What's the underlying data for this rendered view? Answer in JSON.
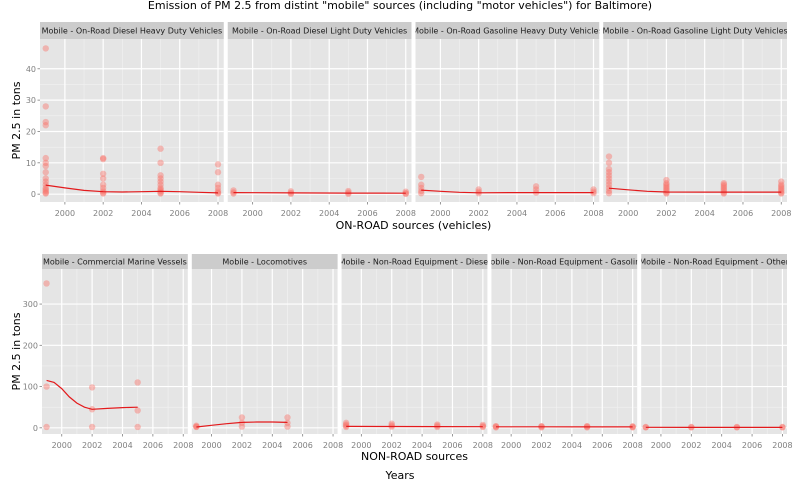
{
  "title": "Emission of PM 2.5 from distint \"mobile\" sources (including \"motor vehicles\") for Baltimore)",
  "bottom_label": "Years",
  "chart_data": [
    {
      "type": "scatter",
      "xlabel": "ON-ROAD sources (vehicles)",
      "ylabel": "PM 2.5 in tons",
      "xlim": [
        1998.7,
        2008.3
      ],
      "ylim": [
        -2.5,
        49.5
      ],
      "xticks": [
        2000,
        2002,
        2004,
        2006,
        2008
      ],
      "yticks": [
        0,
        10,
        20,
        30,
        40
      ],
      "grid": true,
      "facets": [
        {
          "name": "Mobile - On-Road Diesel Heavy Duty Vehicles",
          "points": [
            [
              1999,
              46.5
            ],
            [
              1999,
              28
            ],
            [
              1999,
              23
            ],
            [
              1999,
              22
            ],
            [
              1999,
              11.5
            ],
            [
              1999,
              10
            ],
            [
              1999,
              9
            ],
            [
              1999,
              7
            ],
            [
              1999,
              5
            ],
            [
              1999,
              4
            ],
            [
              1999,
              3
            ],
            [
              1999,
              2
            ],
            [
              1999,
              1.5
            ],
            [
              1999,
              1
            ],
            [
              1999,
              0.5
            ],
            [
              1999,
              0.2
            ],
            [
              2002,
              11.5
            ],
            [
              2002,
              11.2
            ],
            [
              2002,
              6.5
            ],
            [
              2002,
              5
            ],
            [
              2002,
              3
            ],
            [
              2002,
              2
            ],
            [
              2002,
              1
            ],
            [
              2002,
              0.5
            ],
            [
              2002,
              0.2
            ],
            [
              2005,
              14.5
            ],
            [
              2005,
              10
            ],
            [
              2005,
              6
            ],
            [
              2005,
              5
            ],
            [
              2005,
              4
            ],
            [
              2005,
              3
            ],
            [
              2005,
              2
            ],
            [
              2005,
              1.5
            ],
            [
              2005,
              1
            ],
            [
              2005,
              0.5
            ],
            [
              2005,
              0.2
            ],
            [
              2008,
              9.5
            ],
            [
              2008,
              7
            ],
            [
              2008,
              3
            ],
            [
              2008,
              2
            ],
            [
              2008,
              1
            ],
            [
              2008,
              0.5
            ],
            [
              2008,
              0.2
            ]
          ],
          "smooth": [
            [
              1999,
              2.9
            ],
            [
              2000,
              2.0
            ],
            [
              2001,
              1.2
            ],
            [
              2002,
              0.8
            ],
            [
              2003,
              0.7
            ],
            [
              2004,
              0.8
            ],
            [
              2005,
              0.9
            ],
            [
              2006,
              0.8
            ],
            [
              2007,
              0.6
            ],
            [
              2008,
              0.4
            ]
          ]
        },
        {
          "name": "Mobile - On-Road Diesel Light Duty Vehicles",
          "points": [
            [
              1999,
              1.2
            ],
            [
              1999,
              0.6
            ],
            [
              1999,
              0.2
            ],
            [
              2002,
              0.9
            ],
            [
              2002,
              0.4
            ],
            [
              2002,
              0.1
            ],
            [
              2005,
              1.0
            ],
            [
              2005,
              0.5
            ],
            [
              2005,
              0.1
            ],
            [
              2008,
              0.8
            ],
            [
              2008,
              0.3
            ],
            [
              2008,
              0.1
            ]
          ],
          "smooth": [
            [
              1999,
              0.5
            ],
            [
              2002,
              0.4
            ],
            [
              2005,
              0.35
            ],
            [
              2008,
              0.3
            ]
          ]
        },
        {
          "name": "Mobile - On-Road Gasoline Heavy Duty Vehicles",
          "points": [
            [
              1999,
              5.5
            ],
            [
              1999,
              3
            ],
            [
              1999,
              2
            ],
            [
              1999,
              1
            ],
            [
              1999,
              0.3
            ],
            [
              2002,
              1.5
            ],
            [
              2002,
              0.8
            ],
            [
              2002,
              0.3
            ],
            [
              2005,
              2.5
            ],
            [
              2005,
              1.5
            ],
            [
              2005,
              0.5
            ],
            [
              2008,
              1.5
            ],
            [
              2008,
              0.8
            ],
            [
              2008,
              0.3
            ]
          ],
          "smooth": [
            [
              1999,
              1.3
            ],
            [
              2000,
              0.9
            ],
            [
              2001,
              0.6
            ],
            [
              2002,
              0.45
            ],
            [
              2004,
              0.5
            ],
            [
              2006,
              0.5
            ],
            [
              2008,
              0.5
            ]
          ]
        },
        {
          "name": "Mobile - On-Road Gasoline Light Duty Vehicles",
          "points": [
            [
              1999,
              12
            ],
            [
              1999,
              10
            ],
            [
              1999,
              8
            ],
            [
              1999,
              7
            ],
            [
              1999,
              6
            ],
            [
              1999,
              5
            ],
            [
              1999,
              4
            ],
            [
              1999,
              3
            ],
            [
              1999,
              2
            ],
            [
              1999,
              1
            ],
            [
              1999,
              0.3
            ],
            [
              2002,
              4.5
            ],
            [
              2002,
              3.5
            ],
            [
              2002,
              3
            ],
            [
              2002,
              2.5
            ],
            [
              2002,
              2
            ],
            [
              2002,
              1.5
            ],
            [
              2002,
              1
            ],
            [
              2002,
              0.5
            ],
            [
              2002,
              0.2
            ],
            [
              2005,
              3.5
            ],
            [
              2005,
              3
            ],
            [
              2005,
              2.5
            ],
            [
              2005,
              2
            ],
            [
              2005,
              1.5
            ],
            [
              2005,
              1
            ],
            [
              2005,
              0.5
            ],
            [
              2005,
              0.2
            ],
            [
              2008,
              4
            ],
            [
              2008,
              3
            ],
            [
              2008,
              2.5
            ],
            [
              2008,
              2
            ],
            [
              2008,
              1.5
            ],
            [
              2008,
              1
            ],
            [
              2008,
              0.5
            ],
            [
              2008,
              0.2
            ]
          ],
          "smooth": [
            [
              1999,
              1.9
            ],
            [
              2000,
              1.4
            ],
            [
              2001,
              0.9
            ],
            [
              2002,
              0.7
            ],
            [
              2004,
              0.65
            ],
            [
              2006,
              0.65
            ],
            [
              2008,
              0.65
            ]
          ]
        }
      ]
    },
    {
      "type": "scatter",
      "xlabel": "NON-ROAD sources",
      "ylabel": "PM 2.5 in tons",
      "xlim": [
        1998.7,
        2008.3
      ],
      "ylim": [
        -15,
        385
      ],
      "xticks": [
        2000,
        2002,
        2004,
        2006,
        2008
      ],
      "yticks": [
        0,
        100,
        200,
        300
      ],
      "grid": true,
      "facets": [
        {
          "name": "Mobile - Commercial Marine Vessels",
          "points": [
            [
              1999,
              350
            ],
            [
              1999,
              100
            ],
            [
              1999,
              2
            ],
            [
              2002,
              98
            ],
            [
              2002,
              45
            ],
            [
              2002,
              2
            ],
            [
              2005,
              110
            ],
            [
              2005,
              42
            ],
            [
              2005,
              2
            ]
          ],
          "smooth": [
            [
              1999,
              115
            ],
            [
              1999.5,
              110
            ],
            [
              2000,
              95
            ],
            [
              2000.5,
              75
            ],
            [
              2001,
              60
            ],
            [
              2001.5,
              50
            ],
            [
              2002,
              45
            ],
            [
              2003,
              47
            ],
            [
              2004,
              49
            ],
            [
              2005,
              50
            ]
          ]
        },
        {
          "name": "Mobile - Locomotives",
          "points": [
            [
              1999,
              5
            ],
            [
              1999,
              3
            ],
            [
              1999,
              2
            ],
            [
              2002,
              25
            ],
            [
              2002,
              12
            ],
            [
              2002,
              3
            ],
            [
              2005,
              25
            ],
            [
              2005,
              12
            ],
            [
              2005,
              3
            ]
          ],
          "smooth": [
            [
              1999,
              2
            ],
            [
              2000,
              6
            ],
            [
              2001,
              10
            ],
            [
              2002,
              13
            ],
            [
              2003,
              14
            ],
            [
              2004,
              14
            ],
            [
              2005,
              13
            ]
          ]
        },
        {
          "name": "Mobile - Non-Road Equipment - Diesel",
          "points": [
            [
              1999,
              12
            ],
            [
              1999,
              8
            ],
            [
              1999,
              5
            ],
            [
              1999,
              2
            ],
            [
              2002,
              10
            ],
            [
              2002,
              6
            ],
            [
              2002,
              3
            ],
            [
              2005,
              8
            ],
            [
              2005,
              5
            ],
            [
              2005,
              2
            ],
            [
              2008,
              7
            ],
            [
              2008,
              4
            ],
            [
              2008,
              2
            ]
          ],
          "smooth": [
            [
              1999,
              3.5
            ],
            [
              2002,
              3.2
            ],
            [
              2005,
              3
            ],
            [
              2008,
              2.8
            ]
          ]
        },
        {
          "name": "Mobile - Non-Road Equipment - Gasoline",
          "points": [
            [
              1999,
              4
            ],
            [
              1999,
              3
            ],
            [
              1999,
              1
            ],
            [
              2002,
              4
            ],
            [
              2002,
              3
            ],
            [
              2002,
              1
            ],
            [
              2005,
              4
            ],
            [
              2005,
              3
            ],
            [
              2005,
              1
            ],
            [
              2008,
              3.5
            ],
            [
              2008,
              2.5
            ],
            [
              2008,
              1
            ]
          ],
          "smooth": [
            [
              1999,
              2.5
            ],
            [
              2002,
              2.4
            ],
            [
              2005,
              2.3
            ],
            [
              2008,
              2.2
            ]
          ]
        },
        {
          "name": "Mobile - Non-Road Equipment - Other",
          "points": [
            [
              1999,
              2
            ],
            [
              1999,
              1
            ],
            [
              2002,
              2
            ],
            [
              2002,
              1
            ],
            [
              2005,
              2
            ],
            [
              2005,
              1
            ],
            [
              2008,
              2
            ],
            [
              2008,
              1
            ]
          ],
          "smooth": [
            [
              1999,
              1.2
            ],
            [
              2002,
              1.1
            ],
            [
              2005,
              1.1
            ],
            [
              2008,
              1.0
            ]
          ]
        }
      ]
    }
  ]
}
